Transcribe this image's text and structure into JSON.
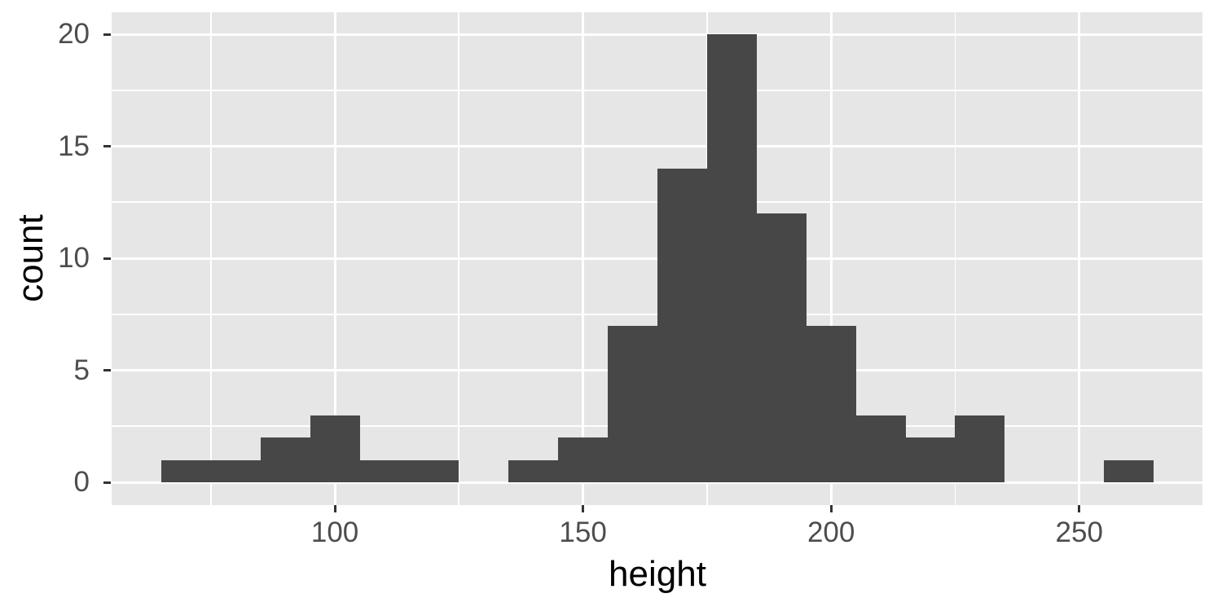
{
  "chart_data": {
    "type": "bar",
    "subtype": "histogram",
    "xlabel": "height",
    "ylabel": "count",
    "bin_width": 10,
    "bins": [
      {
        "start": 65,
        "end": 75,
        "count": 1
      },
      {
        "start": 75,
        "end": 85,
        "count": 1
      },
      {
        "start": 85,
        "end": 95,
        "count": 2
      },
      {
        "start": 95,
        "end": 105,
        "count": 3
      },
      {
        "start": 105,
        "end": 115,
        "count": 1
      },
      {
        "start": 115,
        "end": 125,
        "count": 1
      },
      {
        "start": 125,
        "end": 135,
        "count": 0
      },
      {
        "start": 135,
        "end": 145,
        "count": 1
      },
      {
        "start": 145,
        "end": 155,
        "count": 2
      },
      {
        "start": 155,
        "end": 165,
        "count": 7
      },
      {
        "start": 165,
        "end": 175,
        "count": 14
      },
      {
        "start": 175,
        "end": 185,
        "count": 20
      },
      {
        "start": 185,
        "end": 195,
        "count": 12
      },
      {
        "start": 195,
        "end": 205,
        "count": 7
      },
      {
        "start": 205,
        "end": 215,
        "count": 3
      },
      {
        "start": 215,
        "end": 225,
        "count": 2
      },
      {
        "start": 225,
        "end": 235,
        "count": 3
      },
      {
        "start": 235,
        "end": 245,
        "count": 0
      },
      {
        "start": 245,
        "end": 255,
        "count": 0
      },
      {
        "start": 255,
        "end": 265,
        "count": 1
      }
    ],
    "xlim": [
      55,
      275
    ],
    "ylim": [
      -1,
      21
    ],
    "x_major_ticks": [
      {
        "value": 100,
        "label": "100"
      },
      {
        "value": 150,
        "label": "150"
      },
      {
        "value": 200,
        "label": "200"
      },
      {
        "value": 250,
        "label": "250"
      }
    ],
    "x_minor_ticks": [
      75,
      125,
      175,
      225,
      275
    ],
    "y_major_ticks": [
      {
        "value": 0,
        "label": "0"
      },
      {
        "value": 5,
        "label": "5"
      },
      {
        "value": 10,
        "label": "10"
      },
      {
        "value": 15,
        "label": "15"
      },
      {
        "value": 20,
        "label": "20"
      }
    ],
    "y_minor_ticks": [
      2.5,
      7.5,
      12.5,
      17.5
    ],
    "grid": true,
    "legend": "none",
    "colors": {
      "bar_fill": "#474747",
      "panel_background": "#e6e6e6",
      "gridline": "#ffffff",
      "tick_mark": "#333333",
      "tick_label": "#4d4d4d",
      "axis_title": "#000000",
      "page_background": "#ffffff"
    }
  }
}
